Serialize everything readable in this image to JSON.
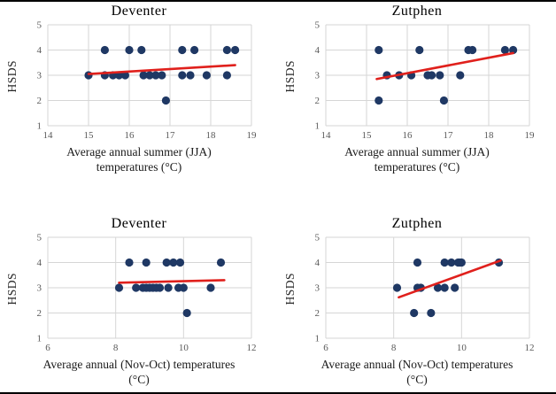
{
  "style": {
    "dot_color": "#1f3864",
    "trend_color": "#e0201c",
    "grid_color": "#d6d6d6",
    "tick_color": "#595959",
    "title_color": "#000000",
    "background": "#ffffff"
  },
  "chart_data": [
    {
      "id": "deventer-summer",
      "type": "scatter",
      "title": "Deventer",
      "ylabel": "HSDS",
      "xlabel_lines": [
        "Average annual summer (JJA)",
        "temperatures (°C)"
      ],
      "xlim": [
        14,
        19
      ],
      "ylim": [
        1,
        5
      ],
      "xticks": [
        14,
        15,
        16,
        17,
        18,
        19
      ],
      "yticks": [
        1,
        2,
        3,
        4,
        5
      ],
      "grid": true,
      "points": [
        [
          15.0,
          3
        ],
        [
          15.4,
          3
        ],
        [
          15.6,
          3
        ],
        [
          15.75,
          3
        ],
        [
          15.9,
          3
        ],
        [
          16.35,
          3
        ],
        [
          16.5,
          3
        ],
        [
          16.65,
          3
        ],
        [
          16.8,
          3
        ],
        [
          17.3,
          3
        ],
        [
          17.5,
          3
        ],
        [
          17.9,
          3
        ],
        [
          18.4,
          3
        ],
        [
          15.4,
          4
        ],
        [
          16.0,
          4
        ],
        [
          16.3,
          4
        ],
        [
          17.3,
          4
        ],
        [
          17.6,
          4
        ],
        [
          18.4,
          4
        ],
        [
          18.6,
          4
        ],
        [
          16.9,
          2
        ]
      ],
      "trend": [
        [
          15.0,
          3.05
        ],
        [
          18.6,
          3.4
        ]
      ]
    },
    {
      "id": "zutphen-summer",
      "type": "scatter",
      "title": "Zutphen",
      "ylabel": "HSDS",
      "xlabel_lines": [
        "Average annual summer (JJA)",
        "temperatures (°C)"
      ],
      "xlim": [
        14,
        19
      ],
      "ylim": [
        1,
        5
      ],
      "xticks": [
        14,
        15,
        16,
        17,
        18,
        19
      ],
      "yticks": [
        1,
        2,
        3,
        4,
        5
      ],
      "grid": true,
      "points": [
        [
          15.5,
          3
        ],
        [
          15.8,
          3
        ],
        [
          16.1,
          3
        ],
        [
          16.5,
          3
        ],
        [
          16.6,
          3
        ],
        [
          16.8,
          3
        ],
        [
          17.3,
          3
        ],
        [
          15.3,
          4
        ],
        [
          16.3,
          4
        ],
        [
          17.5,
          4
        ],
        [
          17.6,
          4
        ],
        [
          18.4,
          4
        ],
        [
          18.6,
          4
        ],
        [
          15.3,
          2
        ],
        [
          16.9,
          2
        ]
      ],
      "trend": [
        [
          15.25,
          2.85
        ],
        [
          18.6,
          3.88
        ]
      ]
    },
    {
      "id": "deventer-annual",
      "type": "scatter",
      "title": "Deventer",
      "ylabel": "HSDS",
      "xlabel_lines": [
        "Average annual (Nov-Oct) temperatures",
        "(°C)"
      ],
      "xlim": [
        6,
        12
      ],
      "ylim": [
        1,
        5
      ],
      "xticks": [
        6,
        8,
        10,
        12
      ],
      "yticks": [
        1,
        2,
        3,
        4,
        5
      ],
      "grid": true,
      "points": [
        [
          8.1,
          3
        ],
        [
          8.6,
          3
        ],
        [
          8.8,
          3
        ],
        [
          8.9,
          3
        ],
        [
          9.0,
          3
        ],
        [
          9.1,
          3
        ],
        [
          9.2,
          3
        ],
        [
          9.3,
          3
        ],
        [
          9.55,
          3
        ],
        [
          9.85,
          3
        ],
        [
          10.0,
          3
        ],
        [
          10.8,
          3
        ],
        [
          8.4,
          4
        ],
        [
          8.9,
          4
        ],
        [
          9.5,
          4
        ],
        [
          9.7,
          4
        ],
        [
          9.9,
          4
        ],
        [
          11.1,
          4
        ],
        [
          10.1,
          2
        ]
      ],
      "trend": [
        [
          8.1,
          3.2
        ],
        [
          11.2,
          3.3
        ]
      ]
    },
    {
      "id": "zutphen-annual",
      "type": "scatter",
      "title": "Zutphen",
      "ylabel": "HSDS",
      "xlabel_lines": [
        "Average annual (Nov-Oct) temperatures",
        "(°C)"
      ],
      "xlim": [
        6,
        12
      ],
      "ylim": [
        1,
        5
      ],
      "xticks": [
        6,
        8,
        10,
        12
      ],
      "yticks": [
        1,
        2,
        3,
        4,
        5
      ],
      "grid": true,
      "points": [
        [
          8.1,
          3
        ],
        [
          8.7,
          3
        ],
        [
          8.8,
          3
        ],
        [
          9.3,
          3
        ],
        [
          9.5,
          3
        ],
        [
          9.8,
          3
        ],
        [
          8.7,
          4
        ],
        [
          9.5,
          4
        ],
        [
          9.7,
          4
        ],
        [
          9.9,
          4
        ],
        [
          9.95,
          4
        ],
        [
          10.0,
          4
        ],
        [
          11.1,
          4
        ],
        [
          8.6,
          2
        ],
        [
          9.1,
          2
        ]
      ],
      "trend": [
        [
          8.15,
          2.62
        ],
        [
          11.15,
          4.08
        ]
      ]
    }
  ]
}
